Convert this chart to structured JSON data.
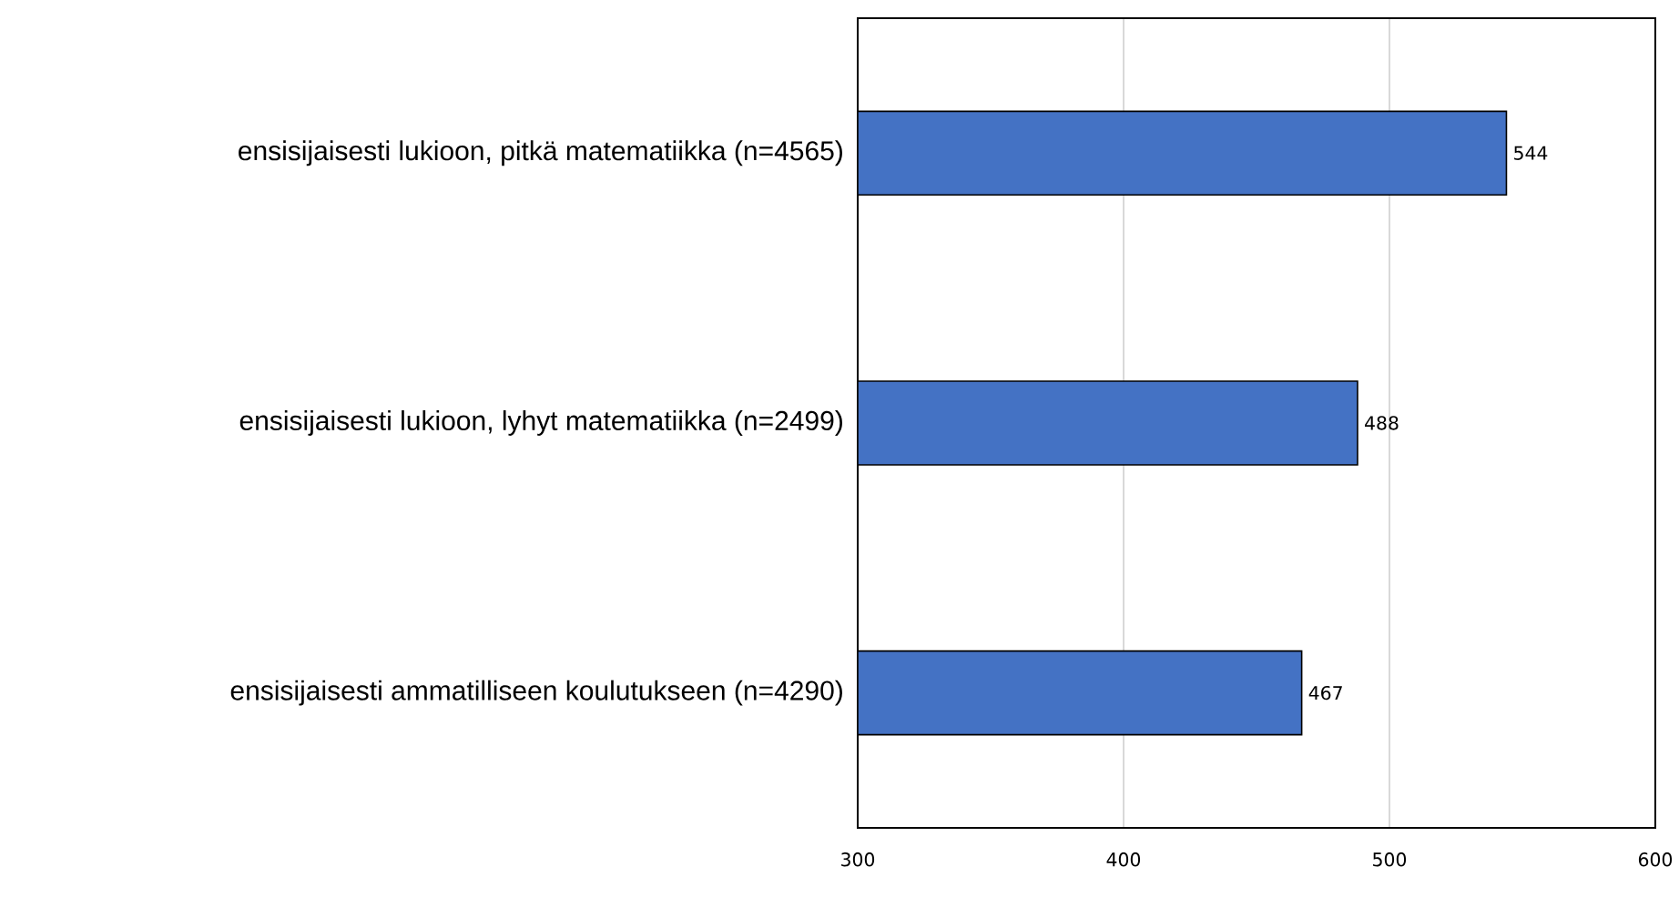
{
  "chart_data": {
    "type": "bar",
    "orientation": "horizontal",
    "categories": [
      "ensisijaisesti lukioon, pitkä matematiikka (n=4565)",
      "ensisijaisesti lukioon, lyhyt matematiikka (n=2499)",
      "ensisijaisesti ammatilliseen koulutukseen (n=4290)"
    ],
    "values": [
      544,
      488,
      467
    ],
    "color": "#4472c4",
    "xlim": [
      300,
      600
    ],
    "xticks": [
      300,
      400,
      500,
      600
    ],
    "grid": "x",
    "data_labels": true
  }
}
